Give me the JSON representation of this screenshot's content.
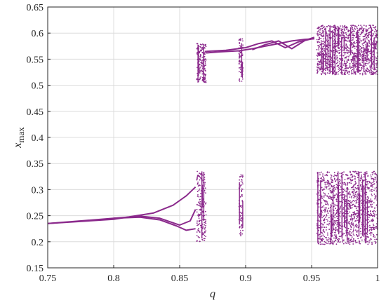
{
  "chart_data": {
    "type": "scatter",
    "title": "",
    "xlabel": "q",
    "ylabel": "x",
    "ylabel_sub": "max",
    "xlim": [
      0.75,
      1.0
    ],
    "ylim": [
      0.15,
      0.65
    ],
    "grid": true,
    "x_ticks": [
      "0.75",
      "0.8",
      "0.85",
      "0.9",
      "0.95",
      "1"
    ],
    "y_ticks": [
      "0.15",
      "0.2",
      "0.25",
      "0.3",
      "0.35",
      "0.4",
      "0.45",
      "0.5",
      "0.55",
      "0.6",
      "0.65"
    ],
    "color": "#8B2A8C",
    "series": [
      {
        "kind": "branch",
        "points": [
          [
            0.75,
            0.235
          ],
          [
            0.8,
            0.243
          ],
          [
            0.83,
            0.255
          ],
          [
            0.845,
            0.27
          ],
          [
            0.855,
            0.288
          ],
          [
            0.862,
            0.305
          ]
        ]
      },
      {
        "kind": "branch",
        "points": [
          [
            0.75,
            0.235
          ],
          [
            0.8,
            0.245
          ],
          [
            0.82,
            0.247
          ],
          [
            0.835,
            0.242
          ],
          [
            0.848,
            0.23
          ],
          [
            0.855,
            0.222
          ],
          [
            0.862,
            0.225
          ]
        ]
      },
      {
        "kind": "branch",
        "points": [
          [
            0.8,
            0.245
          ],
          [
            0.82,
            0.249
          ],
          [
            0.835,
            0.245
          ],
          [
            0.85,
            0.232
          ],
          [
            0.858,
            0.24
          ],
          [
            0.862,
            0.262
          ]
        ]
      },
      {
        "kind": "branch",
        "points": [
          [
            0.87,
            0.562
          ],
          [
            0.88,
            0.564
          ],
          [
            0.895,
            0.566
          ],
          [
            0.905,
            0.57
          ],
          [
            0.915,
            0.575
          ],
          [
            0.925,
            0.58
          ],
          [
            0.935,
            0.585
          ],
          [
            0.945,
            0.588
          ],
          [
            0.952,
            0.589
          ]
        ]
      },
      {
        "kind": "branch",
        "points": [
          [
            0.87,
            0.565
          ],
          [
            0.885,
            0.567
          ],
          [
            0.9,
            0.572
          ],
          [
            0.91,
            0.58
          ],
          [
            0.92,
            0.585
          ],
          [
            0.93,
            0.572
          ],
          [
            0.94,
            0.583
          ],
          [
            0.952,
            0.59
          ]
        ]
      },
      {
        "kind": "branch",
        "points": [
          [
            0.905,
            0.568
          ],
          [
            0.915,
            0.578
          ],
          [
            0.925,
            0.585
          ],
          [
            0.935,
            0.57
          ],
          [
            0.945,
            0.586
          ],
          [
            0.952,
            0.592
          ]
        ]
      },
      {
        "kind": "band",
        "x": [
          0.863,
          0.87
        ],
        "y": [
          [
            0.505,
            0.58
          ],
          [
            0.2,
            0.335
          ]
        ]
      },
      {
        "kind": "band",
        "x": [
          0.895,
          0.898
        ],
        "y": [
          [
            0.505,
            0.59
          ],
          [
            0.21,
            0.33
          ]
        ]
      },
      {
        "kind": "band",
        "x": [
          0.954,
          1.0
        ],
        "y": [
          [
            0.52,
            0.615
          ],
          [
            0.195,
            0.335
          ]
        ]
      }
    ]
  }
}
